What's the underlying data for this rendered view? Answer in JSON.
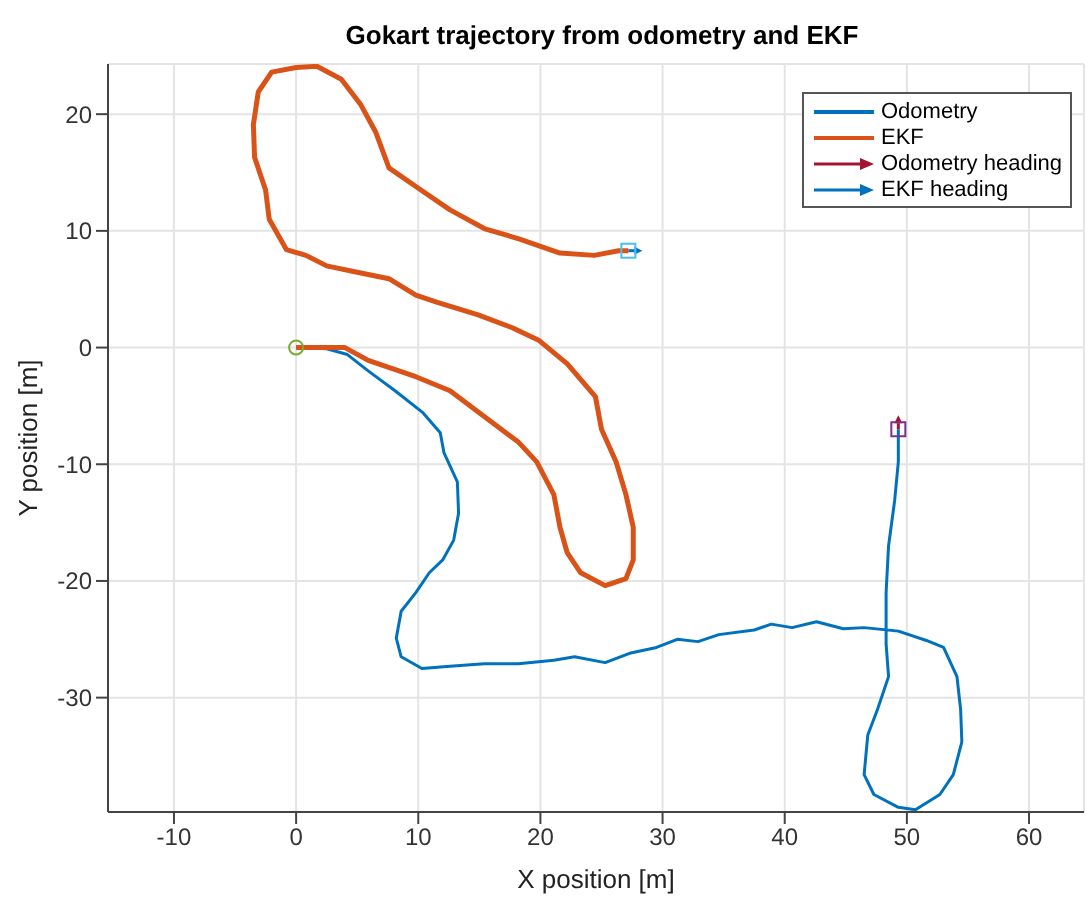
{
  "chart_data": {
    "type": "line",
    "title": "Gokart trajectory from odometry and EKF",
    "xlabel": "X position [m]",
    "ylabel": "Y position [m]",
    "xlim": [
      -15.4,
      64.5
    ],
    "ylim": [
      -39.8,
      24.3
    ],
    "xticks": [
      -10,
      0,
      10,
      20,
      30,
      40,
      50,
      60
    ],
    "yticks": [
      -30,
      -20,
      -10,
      0,
      10,
      20
    ],
    "grid": true,
    "legend": "top right",
    "series": [
      {
        "name": "Odometry",
        "color": "#0072bd",
        "x": [
          0,
          2.5,
          4.2,
          5.9,
          8.1,
          10.4,
          11.8,
          12.1,
          13.2,
          13.3,
          12.9,
          12.0,
          10.9,
          9.8,
          8.6,
          8.2,
          8.6,
          10.3,
          12.6,
          15.4,
          18.2,
          21.1,
          22.8,
          25.3,
          27.3,
          29.5,
          31.2,
          32.9,
          34.6,
          37.5,
          38.9,
          40.6,
          42.6,
          44.8,
          46.5,
          49.3,
          51.6,
          53.0,
          54.1,
          54.4,
          54.5,
          53.8,
          52.7,
          50.7,
          49.3,
          47.3,
          46.5,
          46.8,
          47.6,
          48.5,
          48.3,
          48.3,
          48.5,
          49.0,
          49.3,
          49.3
        ],
        "values": [
          0,
          -0.1,
          -0.6,
          -2.0,
          -3.7,
          -5.6,
          -7.3,
          -9.0,
          -11.5,
          -14.2,
          -16.5,
          -18.2,
          -19.3,
          -21.0,
          -22.6,
          -24.9,
          -26.5,
          -27.5,
          -27.3,
          -27.1,
          -27.1,
          -26.8,
          -26.5,
          -27.0,
          -26.2,
          -25.7,
          -25.0,
          -25.2,
          -24.6,
          -24.2,
          -23.7,
          -24.0,
          -23.5,
          -24.1,
          -24.0,
          -24.3,
          -25.1,
          -25.7,
          -28.2,
          -31.0,
          -33.8,
          -36.6,
          -38.3,
          -39.6,
          -39.4,
          -38.3,
          -36.6,
          -33.2,
          -31.0,
          -28.2,
          -25.4,
          -21.0,
          -17.0,
          -13.1,
          -9.8,
          -7.0
        ]
      },
      {
        "name": "EKF",
        "color": "#d95319",
        "x": [
          0,
          4.0,
          5.9,
          9.8,
          12.6,
          15.4,
          18.2,
          19.7,
          21.1,
          21.6,
          22.2,
          23.3,
          25.3,
          27.0,
          27.6,
          27.6,
          27.0,
          26.2,
          25.0,
          24.5,
          22.2,
          19.9,
          17.7,
          14.9,
          11.5,
          9.8,
          7.6,
          4.8,
          2.5,
          0.8,
          -0.8,
          -2.2,
          -2.5,
          -3.4,
          -3.5,
          -3.1,
          -2.0,
          0,
          1.7,
          3.7,
          5.3,
          6.5,
          7.6,
          9.8,
          12.6,
          15.4,
          18.3,
          21.6,
          24.4,
          26.4,
          27.2
        ],
        "values": [
          0,
          0,
          -1.1,
          -2.5,
          -3.7,
          -5.9,
          -8.1,
          -9.8,
          -12.6,
          -15.4,
          -17.6,
          -19.3,
          -20.4,
          -19.8,
          -18.2,
          -15.4,
          -12.6,
          -9.8,
          -7.0,
          -4.2,
          -1.4,
          0.6,
          1.7,
          2.8,
          3.9,
          4.5,
          5.9,
          6.5,
          7.0,
          7.9,
          8.4,
          11.0,
          13.5,
          16.3,
          19.1,
          21.9,
          23.6,
          24.0,
          24.1,
          23.0,
          20.8,
          18.5,
          15.4,
          13.8,
          11.8,
          10.2,
          9.3,
          8.1,
          7.9,
          8.3,
          8.3
        ]
      },
      {
        "name": "Odometry heading",
        "type": "other",
        "color": "#a2142f"
      },
      {
        "name": "EKF heading",
        "type": "other",
        "color": "#0072bd"
      },
      {
        "type": "scatter",
        "marker": "circle",
        "color": "#77ac30",
        "x": [
          0
        ],
        "values": [
          0
        ]
      },
      {
        "type": "scatter",
        "marker": "square",
        "color": "#4dbeee",
        "x": [
          27.2
        ],
        "values": [
          8.3
        ]
      },
      {
        "type": "scatter",
        "marker": "square",
        "color": "#7e2f8e",
        "x": [
          49.3
        ],
        "values": [
          -7.0
        ]
      }
    ]
  }
}
